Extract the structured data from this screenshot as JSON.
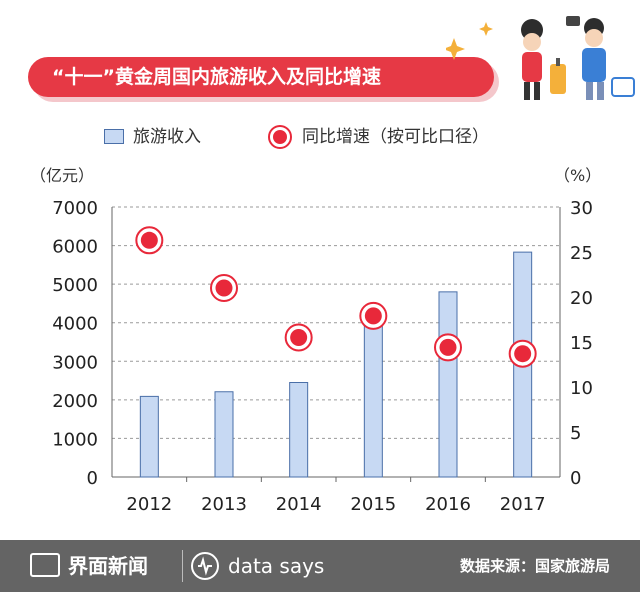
{
  "title": "“十一”黄金周国内旅游收入及同比增速",
  "legend": {
    "bar_label": "旅游收入",
    "dot_label": "同比增速（按可比口径）"
  },
  "units": {
    "left": "（亿元）",
    "right": "（%）"
  },
  "footer": {
    "brand": "界面新闻",
    "data_says": "data says",
    "source": "数据来源：国家旅游局"
  },
  "colors": {
    "title_bg": "#e63945",
    "bar_fill": "#c7d9f3",
    "bar_stroke": "#4a6fa8",
    "dot_red": "#e8283a",
    "footer_bg": "#646464"
  },
  "chart_data": {
    "type": "bar",
    "categories": [
      "2012",
      "2013",
      "2014",
      "2015",
      "2016",
      "2017"
    ],
    "series": [
      {
        "name": "旅游收入",
        "axis": "left",
        "type": "bar",
        "values": [
          2090,
          2210,
          2450,
          4000,
          4800,
          5830
        ]
      },
      {
        "name": "同比增速（按可比口径）",
        "axis": "right",
        "type": "scatter",
        "values": [
          26.3,
          21.0,
          15.5,
          17.9,
          14.4,
          13.7
        ]
      }
    ],
    "yleft": {
      "min": 0,
      "max": 7000,
      "ticks": [
        0,
        1000,
        2000,
        3000,
        4000,
        5000,
        6000,
        7000
      ]
    },
    "yright": {
      "min": 0,
      "max": 30,
      "ticks": [
        0,
        5,
        10,
        15,
        20,
        25,
        30
      ]
    },
    "grid": true
  }
}
